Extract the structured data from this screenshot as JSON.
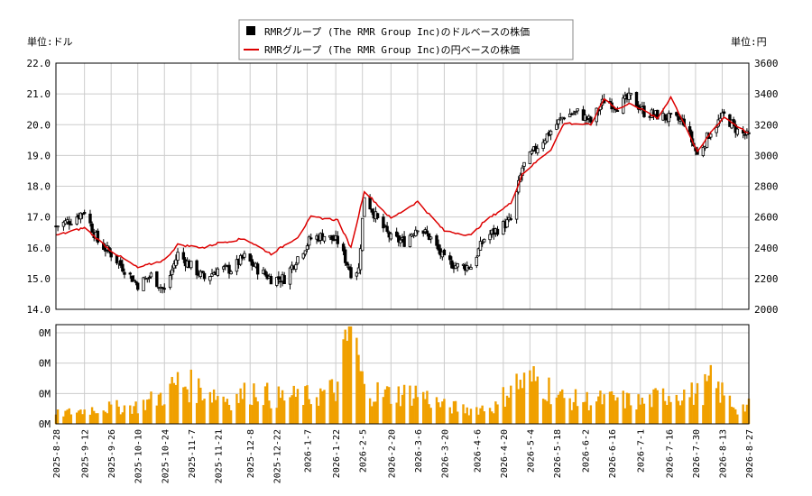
{
  "chart_data": [
    {
      "type": "candlestick+line",
      "legend": {
        "placement": "top-center",
        "entries": [
          {
            "label": "RMRグループ (The RMR Group Inc)のドルベースの株価",
            "color": "#000000",
            "marker": "square"
          },
          {
            "label": "RMRグループ (The RMR Group Inc)の円ベースの株価",
            "color": "#dd0000",
            "marker": "line"
          }
        ]
      },
      "left_axis": {
        "unit_label": "単位:ドル",
        "ylim": [
          14.0,
          22.0
        ],
        "ticks": [
          "14.0",
          "15.0",
          "16.0",
          "17.0",
          "18.0",
          "19.0",
          "20.0",
          "21.0",
          "22.0"
        ]
      },
      "right_axis": {
        "unit_label": "単位:円",
        "ylim": [
          2000,
          3600
        ],
        "ticks": [
          "2000",
          "2200",
          "2400",
          "2600",
          "2800",
          "3000",
          "3200",
          "3400",
          "3600"
        ]
      },
      "grid": true,
      "x_range": [
        "2025-08-28",
        "2026-08-27"
      ],
      "usd_close_keypoints": [
        [
          "2025-08-28",
          16.7
        ],
        [
          "2025-09-05",
          16.9
        ],
        [
          "2025-09-12",
          17.2
        ],
        [
          "2025-09-19",
          16.2
        ],
        [
          "2025-09-26",
          15.8
        ],
        [
          "2025-10-03",
          15.3
        ],
        [
          "2025-10-10",
          14.8
        ],
        [
          "2025-10-17",
          15.1
        ],
        [
          "2025-10-24",
          14.6
        ],
        [
          "2025-10-31",
          15.8
        ],
        [
          "2025-11-07",
          15.4
        ],
        [
          "2025-11-14",
          15.0
        ],
        [
          "2025-11-21",
          15.3
        ],
        [
          "2025-11-28",
          15.3
        ],
        [
          "2025-12-05",
          15.7
        ],
        [
          "2025-12-12",
          15.3
        ],
        [
          "2025-12-19",
          15.0
        ],
        [
          "2025-12-26",
          15.0
        ],
        [
          "2026-01-02",
          15.7
        ],
        [
          "2026-01-09",
          16.3
        ],
        [
          "2026-01-16",
          16.4
        ],
        [
          "2026-01-23",
          16.2
        ],
        [
          "2026-01-30",
          15.2
        ],
        [
          "2026-02-03",
          15.3
        ],
        [
          "2026-02-06",
          17.7
        ],
        [
          "2026-02-13",
          16.9
        ],
        [
          "2026-02-20",
          16.3
        ],
        [
          "2026-02-27",
          16.2
        ],
        [
          "2026-03-06",
          16.7
        ],
        [
          "2026-03-13",
          16.3
        ],
        [
          "2026-03-20",
          15.6
        ],
        [
          "2026-03-27",
          15.4
        ],
        [
          "2026-04-03",
          15.4
        ],
        [
          "2026-04-10",
          16.3
        ],
        [
          "2026-04-17",
          16.6
        ],
        [
          "2026-04-24",
          16.9
        ],
        [
          "2026-04-30",
          18.6
        ],
        [
          "2026-05-08",
          19.3
        ],
        [
          "2026-05-15",
          19.8
        ],
        [
          "2026-05-22",
          20.3
        ],
        [
          "2026-05-29",
          20.4
        ],
        [
          "2026-06-05",
          20.1
        ],
        [
          "2026-06-12",
          20.8
        ],
        [
          "2026-06-19",
          20.6
        ],
        [
          "2026-06-26",
          20.9
        ],
        [
          "2026-07-03",
          20.4
        ],
        [
          "2026-07-10",
          20.3
        ],
        [
          "2026-07-17",
          20.2
        ],
        [
          "2026-07-24",
          20.1
        ],
        [
          "2026-07-31",
          19.0
        ],
        [
          "2026-08-07",
          19.8
        ],
        [
          "2026-08-14",
          20.3
        ],
        [
          "2026-08-21",
          19.8
        ],
        [
          "2026-08-27",
          19.6
        ]
      ],
      "jpy_close_keypoints": [
        [
          "2025-08-28",
          2480
        ],
        [
          "2025-09-12",
          2530
        ],
        [
          "2025-09-26",
          2380
        ],
        [
          "2025-10-10",
          2270
        ],
        [
          "2025-10-24",
          2320
        ],
        [
          "2025-10-31",
          2420
        ],
        [
          "2025-11-14",
          2400
        ],
        [
          "2025-11-21",
          2430
        ],
        [
          "2025-12-05",
          2460
        ],
        [
          "2025-12-19",
          2360
        ],
        [
          "2026-01-02",
          2470
        ],
        [
          "2026-01-09",
          2600
        ],
        [
          "2026-01-23",
          2580
        ],
        [
          "2026-01-30",
          2400
        ],
        [
          "2026-02-06",
          2770
        ],
        [
          "2026-02-20",
          2590
        ],
        [
          "2026-03-06",
          2700
        ],
        [
          "2026-03-20",
          2510
        ],
        [
          "2026-04-03",
          2480
        ],
        [
          "2026-04-10",
          2570
        ],
        [
          "2026-04-24",
          2690
        ],
        [
          "2026-04-30",
          2880
        ],
        [
          "2026-05-15",
          3040
        ],
        [
          "2026-05-22",
          3210
        ],
        [
          "2026-06-05",
          3200
        ],
        [
          "2026-06-12",
          3370
        ],
        [
          "2026-06-19",
          3300
        ],
        [
          "2026-06-26",
          3340
        ],
        [
          "2026-07-10",
          3240
        ],
        [
          "2026-07-17",
          3380
        ],
        [
          "2026-07-24",
          3210
        ],
        [
          "2026-07-31",
          3020
        ],
        [
          "2026-08-07",
          3150
        ],
        [
          "2026-08-14",
          3250
        ],
        [
          "2026-08-27",
          3140
        ]
      ]
    },
    {
      "type": "bar",
      "series_name": "出来高",
      "color": "#f0a000",
      "ylabels": [
        "0M",
        "0M",
        "0M",
        "0M"
      ],
      "x_range": [
        "2025-08-28",
        "2026-08-27"
      ],
      "volume_keypoints_relative": [
        [
          "2025-08-28",
          0.1
        ],
        [
          "2025-09-19",
          0.16
        ],
        [
          "2025-10-10",
          0.18
        ],
        [
          "2025-10-24",
          0.3
        ],
        [
          "2025-10-31",
          0.42
        ],
        [
          "2025-11-14",
          0.35
        ],
        [
          "2025-11-28",
          0.25
        ],
        [
          "2025-12-12",
          0.36
        ],
        [
          "2025-12-19",
          0.27
        ],
        [
          "2026-01-09",
          0.28
        ],
        [
          "2026-01-23",
          0.36
        ],
        [
          "2026-01-30",
          1.0
        ],
        [
          "2026-02-06",
          0.34
        ],
        [
          "2026-02-20",
          0.3
        ],
        [
          "2026-03-06",
          0.32
        ],
        [
          "2026-03-20",
          0.18
        ],
        [
          "2026-04-03",
          0.15
        ],
        [
          "2026-04-17",
          0.18
        ],
        [
          "2026-04-24",
          0.4
        ],
        [
          "2026-05-08",
          0.45
        ],
        [
          "2026-05-22",
          0.25
        ],
        [
          "2026-06-05",
          0.24
        ],
        [
          "2026-06-19",
          0.25
        ],
        [
          "2026-07-03",
          0.22
        ],
        [
          "2026-07-17",
          0.32
        ],
        [
          "2026-07-31",
          0.3
        ],
        [
          "2026-08-07",
          0.42
        ],
        [
          "2026-08-21",
          0.16
        ],
        [
          "2026-08-27",
          0.18
        ]
      ]
    }
  ],
  "x_tick_labels": [
    "2025-8-28",
    "2025-9-12",
    "2025-9-26",
    "2025-10-10",
    "2025-10-24",
    "2025-11-7",
    "2025-11-21",
    "2025-12-8",
    "2025-12-22",
    "2026-1-7",
    "2026-1-22",
    "2026-2-5",
    "2026-2-20",
    "2026-3-6",
    "2026-3-20",
    "2026-4-6",
    "2026-4-20",
    "2026-5-4",
    "2026-5-18",
    "2026-6-2",
    "2026-6-16",
    "2026-7-1",
    "2026-7-16",
    "2026-7-30",
    "2026-8-13",
    "2026-8-27"
  ],
  "x_tick_dates": [
    "2025-08-28",
    "2025-09-12",
    "2025-09-26",
    "2025-10-10",
    "2025-10-24",
    "2025-11-07",
    "2025-11-21",
    "2025-12-08",
    "2025-12-22",
    "2026-01-07",
    "2026-01-22",
    "2026-02-05",
    "2026-02-20",
    "2026-03-06",
    "2026-03-20",
    "2026-04-06",
    "2026-04-20",
    "2026-05-04",
    "2026-05-18",
    "2026-06-02",
    "2026-06-16",
    "2026-07-01",
    "2026-07-16",
    "2026-07-30",
    "2026-08-13",
    "2026-08-27"
  ]
}
